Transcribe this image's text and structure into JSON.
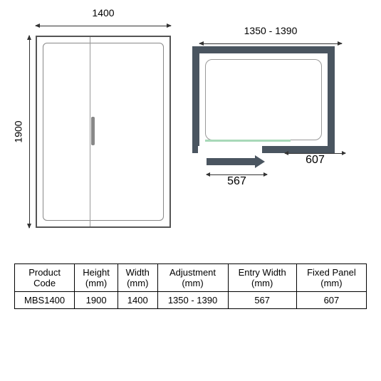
{
  "front": {
    "width_label": "1400",
    "height_label": "1900"
  },
  "plan": {
    "range_label": "1350 - 1390",
    "entry_label": "567",
    "fixed_label": "607",
    "frame_color": "#4a5560",
    "slide_color": "#a8d8b8"
  },
  "table": {
    "headers": {
      "code_l1": "Product",
      "code_l2": "Code",
      "height_l1": "Height",
      "height_l2": "(mm)",
      "width_l1": "Width",
      "width_l2": "(mm)",
      "adj_l1": "Adjustment",
      "adj_l2": "(mm)",
      "entry_l1": "Entry Width",
      "entry_l2": "(mm)",
      "fixed_l1": "Fixed Panel",
      "fixed_l2": "(mm)"
    },
    "row": {
      "code": "MBS1400",
      "height": "1900",
      "width": "1400",
      "adjustment": "1350 - 1390",
      "entry": "567",
      "fixed": "607"
    }
  }
}
